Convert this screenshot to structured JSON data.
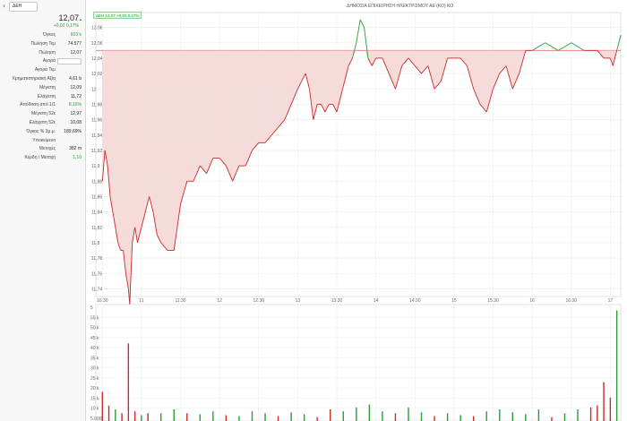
{
  "instrument": {
    "ticker": "ΔΕΗ",
    "price": "12,07",
    "change": "+0,02  0,17%",
    "colors": {
      "up": "#2a9d3a",
      "down": "#c92a2a",
      "fill": "#f5d5d5",
      "ref": "#e07070"
    }
  },
  "fields": [
    {
      "label": "Όγκος",
      "value": "603 k",
      "style": "green"
    },
    {
      "label": "Πώληση Τεμ",
      "value": "74.577",
      "style": ""
    },
    {
      "label": "Πώληση",
      "value": "12,07",
      "style": ""
    },
    {
      "label": "Αγορά",
      "value": "",
      "style": "input"
    },
    {
      "label": "Αγορά Τεμ",
      "value": "",
      "style": ""
    },
    {
      "label": "Χρηματιστηριακή Αξία",
      "value": "4,61 b",
      "style": ""
    },
    {
      "label": "Μέγιστη",
      "value": "12,09",
      "style": ""
    },
    {
      "label": "Ελάχιστη",
      "value": "11,72",
      "style": ""
    },
    {
      "label": "Απόδοση από 1/1",
      "value": "8,16%",
      "style": "green"
    },
    {
      "label": "Μέγιστη 52ε",
      "value": "12,97",
      "style": ""
    },
    {
      "label": "Ελάχιστη 52ε",
      "value": "10,08",
      "style": ""
    },
    {
      "label": "Όγκος % 3μ.μ.",
      "value": "189,69%",
      "style": ""
    },
    {
      "label": "Υποκείμενο",
      "value": "",
      "style": ""
    },
    {
      "label": "Μετοχές",
      "value": "382 m",
      "style": ""
    },
    {
      "label": "Κέρδη / Μετοχή",
      "value": "1,10",
      "style": "green"
    }
  ],
  "chart": {
    "title": "ΔΗΜΟΣΙΑ ΕΠΙΧΕΙΡΗΣΗ ΗΛΕΚΤΡΙΣΜΟΥ ΑΕ (ΚΟ) ΚΟ",
    "legend": "ΔΕΗ 12,07 +0,02 0,17%",
    "price_ticks": [
      "12,08",
      "12,06",
      "12,04",
      "12,02",
      "12",
      "11,98",
      "11,96",
      "11,94",
      "11,92",
      "11,9",
      "11,88",
      "11,86",
      "11,84",
      "11,82",
      "11,8",
      "11,78",
      "11,76",
      "11,74"
    ],
    "time_ticks": [
      "10:30",
      "11",
      "11:30",
      "12",
      "12:30",
      "13",
      "13:30",
      "14",
      "14:30",
      "15",
      "15:30",
      "16",
      "16:30",
      "17"
    ],
    "volume_ticks": [
      "5",
      "55 k",
      "50 k",
      "45 k",
      "40 k",
      "35 k",
      "30 k",
      "25 k",
      "20 k",
      "15 k",
      "10 k",
      "5.000"
    ]
  },
  "chart_data": {
    "type": "area",
    "title": "ΔΗΜΟΣΙΑ ΕΠΙΧΕΙΡΗΣΗ ΗΛΕΚΤΡΙΣΜΟΥ ΑΕ (ΚΟ) ΚΟ",
    "reference_price": 12.05,
    "ylim": [
      11.73,
      12.09
    ],
    "x_range": [
      "10:25",
      "17:08"
    ],
    "price_series": {
      "name": "ΔΕΗ",
      "points": [
        [
          "10:30",
          11.88
        ],
        [
          "10:32",
          11.92
        ],
        [
          "10:34",
          11.9
        ],
        [
          "10:36",
          11.86
        ],
        [
          "10:38",
          11.84
        ],
        [
          "10:40",
          11.82
        ],
        [
          "10:42",
          11.8
        ],
        [
          "10:44",
          11.79
        ],
        [
          "10:46",
          11.79
        ],
        [
          "10:48",
          11.76
        ],
        [
          "10:50",
          11.74
        ],
        [
          "10:51",
          11.72
        ],
        [
          "10:53",
          11.8
        ],
        [
          "10:55",
          11.82
        ],
        [
          "10:57",
          11.8
        ],
        [
          "11:00",
          11.82
        ],
        [
          "11:03",
          11.84
        ],
        [
          "11:06",
          11.86
        ],
        [
          "11:09",
          11.84
        ],
        [
          "11:12",
          11.81
        ],
        [
          "11:15",
          11.8
        ],
        [
          "11:20",
          11.79
        ],
        [
          "11:25",
          11.79
        ],
        [
          "11:30",
          11.85
        ],
        [
          "11:35",
          11.88
        ],
        [
          "11:40",
          11.88
        ],
        [
          "11:45",
          11.9
        ],
        [
          "11:50",
          11.89
        ],
        [
          "11:55",
          11.91
        ],
        [
          "12:00",
          11.91
        ],
        [
          "12:05",
          11.9
        ],
        [
          "12:10",
          11.88
        ],
        [
          "12:15",
          11.9
        ],
        [
          "12:20",
          11.9
        ],
        [
          "12:25",
          11.92
        ],
        [
          "12:30",
          11.93
        ],
        [
          "12:35",
          11.93
        ],
        [
          "12:40",
          11.94
        ],
        [
          "12:45",
          11.95
        ],
        [
          "12:50",
          11.96
        ],
        [
          "12:55",
          11.98
        ],
        [
          "13:00",
          12.0
        ],
        [
          "13:03",
          12.01
        ],
        [
          "13:06",
          12.02
        ],
        [
          "13:09",
          12.0
        ],
        [
          "13:12",
          11.96
        ],
        [
          "13:15",
          11.98
        ],
        [
          "13:18",
          11.98
        ],
        [
          "13:21",
          11.97
        ],
        [
          "13:24",
          11.98
        ],
        [
          "13:27",
          11.98
        ],
        [
          "13:30",
          11.97
        ],
        [
          "13:33",
          11.99
        ],
        [
          "13:36",
          12.01
        ],
        [
          "13:39",
          12.03
        ],
        [
          "13:42",
          12.04
        ],
        [
          "13:45",
          12.06
        ],
        [
          "13:48",
          12.09
        ],
        [
          "13:51",
          12.08
        ],
        [
          "13:54",
          12.04
        ],
        [
          "13:57",
          12.03
        ],
        [
          "14:00",
          12.04
        ],
        [
          "14:05",
          12.04
        ],
        [
          "14:10",
          12.02
        ],
        [
          "14:15",
          12.0
        ],
        [
          "14:20",
          12.03
        ],
        [
          "14:25",
          12.04
        ],
        [
          "14:30",
          12.03
        ],
        [
          "14:35",
          12.02
        ],
        [
          "14:40",
          12.03
        ],
        [
          "14:45",
          12.0
        ],
        [
          "14:50",
          12.01
        ],
        [
          "14:55",
          12.04
        ],
        [
          "15:00",
          12.04
        ],
        [
          "15:05",
          12.04
        ],
        [
          "15:10",
          12.03
        ],
        [
          "15:15",
          12.0
        ],
        [
          "15:20",
          11.98
        ],
        [
          "15:25",
          11.97
        ],
        [
          "15:30",
          12.0
        ],
        [
          "15:35",
          12.02
        ],
        [
          "15:40",
          12.03
        ],
        [
          "15:45",
          12.0
        ],
        [
          "15:50",
          12.02
        ],
        [
          "15:55",
          12.05
        ],
        [
          "16:00",
          12.05
        ],
        [
          "16:10",
          12.06
        ],
        [
          "16:20",
          12.05
        ],
        [
          "16:30",
          12.06
        ],
        [
          "16:40",
          12.05
        ],
        [
          "16:50",
          12.05
        ],
        [
          "16:55",
          12.04
        ],
        [
          "17:00",
          12.04
        ],
        [
          "17:02",
          12.03
        ],
        [
          "17:05",
          12.05
        ],
        [
          "17:08",
          12.07
        ]
      ]
    },
    "volume_series": {
      "name": "Όγκος",
      "ylim": [
        0,
        60000
      ],
      "bars": [
        [
          "10:30",
          15000,
          "down"
        ],
        [
          "10:35",
          8000,
          "down"
        ],
        [
          "10:40",
          6000,
          "up"
        ],
        [
          "10:45",
          4000,
          "down"
        ],
        [
          "10:50",
          40000,
          "down"
        ],
        [
          "10:55",
          5000,
          "down"
        ],
        [
          "11:00",
          3000,
          "up"
        ],
        [
          "11:05",
          4000,
          "down"
        ],
        [
          "11:15",
          4000,
          "up"
        ],
        [
          "11:25",
          6000,
          "up"
        ],
        [
          "11:35",
          4000,
          "down"
        ],
        [
          "11:45",
          3500,
          "up"
        ],
        [
          "11:55",
          5000,
          "up"
        ],
        [
          "12:05",
          3000,
          "down"
        ],
        [
          "12:15",
          2500,
          "up"
        ],
        [
          "12:25",
          5000,
          "up"
        ],
        [
          "12:35",
          4000,
          "up"
        ],
        [
          "12:45",
          2500,
          "down"
        ],
        [
          "12:55",
          4500,
          "up"
        ],
        [
          "13:05",
          3500,
          "up"
        ],
        [
          "13:15",
          2000,
          "down"
        ],
        [
          "13:25",
          6000,
          "down"
        ],
        [
          "13:35",
          5000,
          "up"
        ],
        [
          "13:45",
          7000,
          "up"
        ],
        [
          "13:55",
          8500,
          "up"
        ],
        [
          "14:05",
          5000,
          "up"
        ],
        [
          "14:15",
          4000,
          "down"
        ],
        [
          "14:25",
          7000,
          "up"
        ],
        [
          "14:35",
          4500,
          "up"
        ],
        [
          "14:45",
          2500,
          "down"
        ],
        [
          "14:55",
          4000,
          "up"
        ],
        [
          "15:05",
          3000,
          "up"
        ],
        [
          "15:15",
          2500,
          "down"
        ],
        [
          "15:25",
          5000,
          "up"
        ],
        [
          "15:35",
          6000,
          "up"
        ],
        [
          "15:45",
          4500,
          "up"
        ],
        [
          "15:55",
          3500,
          "up"
        ],
        [
          "16:05",
          6000,
          "up"
        ],
        [
          "16:15",
          2000,
          "down"
        ],
        [
          "16:25",
          4000,
          "up"
        ],
        [
          "16:35",
          6000,
          "up"
        ],
        [
          "16:45",
          7000,
          "down"
        ],
        [
          "16:50",
          8000,
          "down"
        ],
        [
          "16:55",
          20000,
          "down"
        ],
        [
          "17:00",
          12000,
          "down"
        ],
        [
          "17:05",
          57000,
          "up"
        ]
      ]
    }
  }
}
